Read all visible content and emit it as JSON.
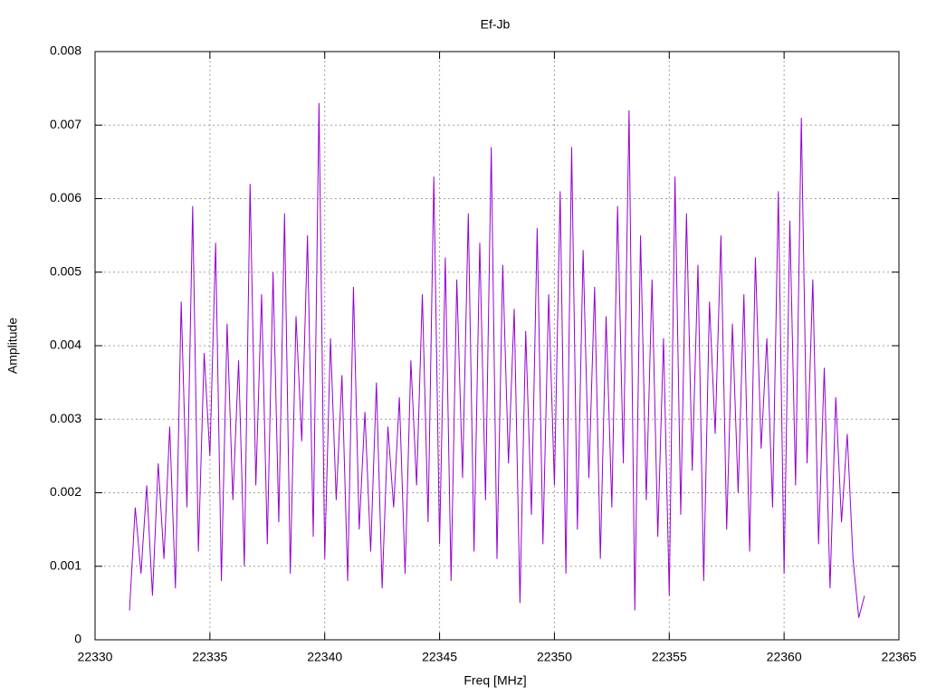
{
  "chart_data": {
    "type": "line",
    "title": "Ef-Jb",
    "xlabel": "Freq [MHz]",
    "ylabel": "Amplitude",
    "x": [
      22331.5,
      22331.75,
      22332,
      22332.25,
      22332.5,
      22332.75,
      22333,
      22333.25,
      22333.5,
      22333.75,
      22334,
      22334.25,
      22334.5,
      22334.75,
      22335,
      22335.25,
      22335.5,
      22335.75,
      22336,
      22336.25,
      22336.5,
      22336.75,
      22337,
      22337.25,
      22337.5,
      22337.75,
      22338,
      22338.25,
      22338.5,
      22338.75,
      22339,
      22339.25,
      22339.5,
      22339.75,
      22340,
      22340.25,
      22340.5,
      22340.75,
      22341,
      22341.25,
      22341.5,
      22341.75,
      22342,
      22342.25,
      22342.5,
      22342.75,
      22343,
      22343.25,
      22343.5,
      22343.75,
      22344,
      22344.25,
      22344.5,
      22344.75,
      22345,
      22345.25,
      22345.5,
      22345.75,
      22346,
      22346.25,
      22346.5,
      22346.75,
      22347,
      22347.25,
      22347.5,
      22347.75,
      22348,
      22348.25,
      22348.5,
      22348.75,
      22349,
      22349.25,
      22349.5,
      22349.75,
      22350,
      22350.25,
      22350.5,
      22350.75,
      22351,
      22351.25,
      22351.5,
      22351.75,
      22352,
      22352.25,
      22352.5,
      22352.75,
      22353,
      22353.25,
      22353.5,
      22353.75,
      22354,
      22354.25,
      22354.5,
      22354.75,
      22355,
      22355.25,
      22355.5,
      22355.75,
      22356,
      22356.25,
      22356.5,
      22356.75,
      22357,
      22357.25,
      22357.5,
      22357.75,
      22358,
      22358.25,
      22358.5,
      22358.75,
      22359,
      22359.25,
      22359.5,
      22359.75,
      22360,
      22360.25,
      22360.5,
      22360.75,
      22361,
      22361.25,
      22361.5,
      22361.75,
      22362,
      22362.25,
      22362.5,
      22362.75,
      22363,
      22363.25,
      22363.5
    ],
    "series": [
      {
        "color": "#9400d3",
        "values": [
          0.0004,
          0.0018,
          0.0009,
          0.0021,
          0.0006,
          0.0024,
          0.0011,
          0.0029,
          0.0007,
          0.0046,
          0.0018,
          0.0059,
          0.0012,
          0.0039,
          0.0025,
          0.0054,
          0.0008,
          0.0043,
          0.0019,
          0.0038,
          0.001,
          0.0062,
          0.0021,
          0.0047,
          0.0013,
          0.005,
          0.0016,
          0.0058,
          0.0009,
          0.0044,
          0.0027,
          0.0055,
          0.0014,
          0.0073,
          0.0011,
          0.0041,
          0.0019,
          0.0036,
          0.0008,
          0.0048,
          0.0015,
          0.0031,
          0.0012,
          0.0035,
          0.0007,
          0.0029,
          0.0018,
          0.0033,
          0.0009,
          0.0038,
          0.0021,
          0.0047,
          0.0016,
          0.0063,
          0.0013,
          0.0052,
          0.0008,
          0.0049,
          0.0022,
          0.0058,
          0.0012,
          0.0054,
          0.0019,
          0.0067,
          0.0011,
          0.0051,
          0.0024,
          0.0045,
          0.0005,
          0.0042,
          0.0017,
          0.0056,
          0.0013,
          0.0047,
          0.0021,
          0.0061,
          0.0009,
          0.0067,
          0.0015,
          0.0053,
          0.0022,
          0.0048,
          0.0011,
          0.0044,
          0.0018,
          0.0059,
          0.0024,
          0.0072,
          0.0004,
          0.0055,
          0.0019,
          0.0049,
          0.0014,
          0.0041,
          0.0006,
          0.0063,
          0.0017,
          0.0058,
          0.0023,
          0.0051,
          0.0008,
          0.0046,
          0.0028,
          0.0055,
          0.0015,
          0.0043,
          0.002,
          0.0047,
          0.0012,
          0.0052,
          0.0026,
          0.0041,
          0.0018,
          0.0061,
          0.0009,
          0.0057,
          0.0021,
          0.0071,
          0.0024,
          0.0049,
          0.0013,
          0.0037,
          0.0007,
          0.0033,
          0.0016,
          0.0028,
          0.0011,
          0.0003,
          0.0006
        ]
      }
    ],
    "xlim": [
      22330,
      22365
    ],
    "xticks": [
      22330,
      22335,
      22340,
      22345,
      22350,
      22355,
      22360,
      22365
    ],
    "ylim": [
      0,
      0.008
    ],
    "yticks": [
      0,
      0.001,
      0.002,
      0.003,
      0.004,
      0.005,
      0.006,
      0.007,
      0.008
    ],
    "grid": true
  }
}
